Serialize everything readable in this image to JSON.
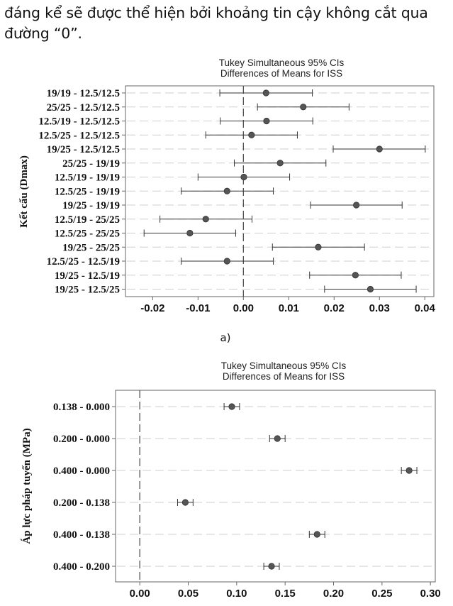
{
  "intro_text": "đáng kể sẽ được thể hiện bởi khoảng tin cậy không cắt qua đường “0”.",
  "colors": {
    "point": "#555555",
    "grid": "#cfcfcf",
    "axis": "#666666",
    "text": "#111111"
  },
  "chart_data": [
    {
      "type": "scatter",
      "subplot_label": "a)",
      "title": "Tukey Simultaneous 95% CIs",
      "subtitle": "Differences of Means for ISS",
      "ylabel": "Kết cấu (Dmax)",
      "xlabel": "",
      "xlim": [
        -0.026,
        0.042
      ],
      "xticks": [
        "-0.02",
        "-0.01",
        "0.00",
        "0.01",
        "0.02",
        "0.03",
        "0.04"
      ],
      "xtick_values": [
        -0.02,
        -0.01,
        0,
        0.01,
        0.02,
        0.03,
        0.04
      ],
      "categories": [
        "19/19 - 12.5/12.5",
        "25/25 - 12.5/12.5",
        "12.5/19 - 12.5/12.5",
        "12.5/25 - 12.5/12.5",
        "19/25 - 12.5/12.5",
        "25/25 - 19/19",
        "12.5/19 - 19/19",
        "12.5/25 - 19/19",
        "19/25 - 19/19",
        "12.5/19 - 25/25",
        "12.5/25 - 25/25",
        "19/25 - 25/25",
        "12.5/25 - 12.5/19",
        "19/25 - 12.5/19",
        "19/25 - 12.5/25"
      ],
      "estimates": [
        0.005,
        0.0132,
        0.0051,
        0.0018,
        0.03,
        0.0081,
        0.0001,
        -0.0036,
        0.0249,
        -0.0083,
        -0.0118,
        0.0165,
        -0.0036,
        0.0247,
        0.028
      ],
      "lower": [
        -0.0052,
        0.0031,
        -0.0051,
        -0.0083,
        0.0198,
        -0.002,
        -0.01,
        -0.0137,
        0.0148,
        -0.0184,
        -0.0219,
        0.0064,
        -0.0137,
        0.0146,
        0.0179
      ],
      "upper": [
        0.0152,
        0.0233,
        0.0153,
        0.0119,
        0.0401,
        0.0182,
        0.0102,
        0.0066,
        0.035,
        0.0019,
        -0.0017,
        0.0267,
        0.0066,
        0.0348,
        0.0381
      ],
      "reference_line": 0
    },
    {
      "type": "scatter",
      "title": "Tukey Simultaneous 95% CIs",
      "subtitle": "Differences of Means for ISS",
      "ylabel": "Áp lực pháp tuyến (MPa)",
      "xlabel": "",
      "xlim": [
        -0.025,
        0.305
      ],
      "xticks": [
        "0.00",
        "0.05",
        "0.10",
        "0.15",
        "0.20",
        "0.25",
        "0.30"
      ],
      "xtick_values": [
        0,
        0.05,
        0.1,
        0.15,
        0.2,
        0.25,
        0.3
      ],
      "categories": [
        "0.138 - 0.000",
        "0.200 - 0.000",
        "0.400 - 0.000",
        "0.200 - 0.138",
        "0.400 - 0.138",
        "0.400 - 0.200"
      ],
      "estimates": [
        0.095,
        0.142,
        0.278,
        0.047,
        0.183,
        0.136
      ],
      "lower": [
        0.087,
        0.134,
        0.27,
        0.039,
        0.175,
        0.128
      ],
      "upper": [
        0.103,
        0.15,
        0.286,
        0.055,
        0.191,
        0.144
      ],
      "reference_line": 0
    }
  ]
}
